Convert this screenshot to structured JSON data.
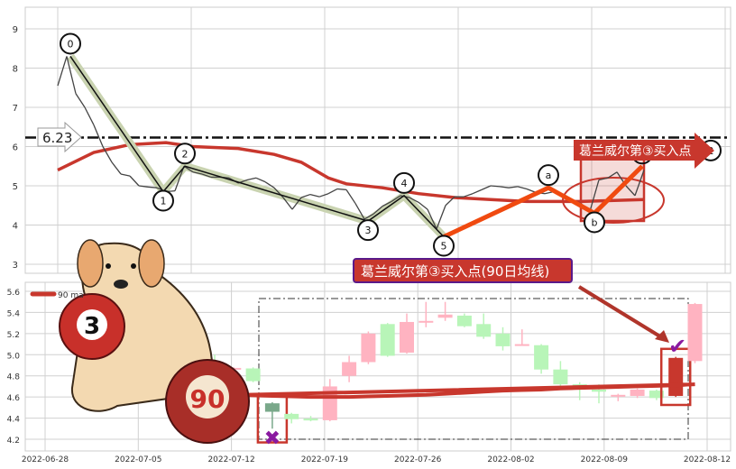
{
  "chart_data": [
    {
      "type": "line",
      "panel": "top",
      "yticks": [
        3,
        4,
        5,
        6,
        7,
        8,
        9
      ],
      "ylim": [
        2.7,
        9.5
      ],
      "grid": true,
      "price": [
        7.55,
        8.3,
        7.35,
        7.0,
        6.55,
        6.0,
        5.6,
        5.3,
        5.25,
        5.0,
        4.97,
        4.95,
        4.85,
        4.87,
        5.5,
        5.35,
        5.3,
        5.22,
        5.22,
        5.2,
        5.07,
        5.15,
        5.2,
        5.1,
        4.95,
        4.7,
        4.4,
        4.7,
        4.78,
        4.72,
        4.8,
        4.92,
        4.9,
        4.55,
        4.15,
        4.28,
        4.48,
        4.6,
        4.75,
        4.7,
        4.58,
        4.4,
        3.9,
        4.5,
        4.72,
        4.72,
        4.8,
        4.9,
        5.0,
        4.98,
        4.95,
        4.98,
        4.92,
        4.83,
        4.8,
        4.85,
        4.75,
        4.65,
        4.55,
        4.35,
        5.15,
        5.2,
        5.35,
        5.0,
        4.75,
        5.4
      ],
      "ma": [
        [
          0,
          5.4
        ],
        [
          4,
          5.85
        ],
        [
          8,
          6.05
        ],
        [
          12,
          6.1
        ],
        [
          15,
          6.0
        ],
        [
          20,
          5.95
        ],
        [
          24,
          5.8
        ],
        [
          27,
          5.6
        ],
        [
          30,
          5.2
        ],
        [
          32,
          5.05
        ],
        [
          36,
          4.95
        ],
        [
          40,
          4.8
        ],
        [
          44,
          4.7
        ],
        [
          48,
          4.65
        ],
        [
          52,
          4.6
        ],
        [
          58,
          4.6
        ],
        [
          65,
          4.65
        ]
      ],
      "level_line": {
        "value": 6.23,
        "label": "6.23"
      },
      "wave_points": [
        {
          "label": "0",
          "i": 1.4,
          "v": 8.3,
          "pos": "above"
        },
        {
          "label": "1",
          "i": 11.7,
          "v": 4.85,
          "pos": "below"
        },
        {
          "label": "2",
          "i": 14.1,
          "v": 5.5,
          "pos": "above"
        },
        {
          "label": "3",
          "i": 34.4,
          "v": 4.1,
          "pos": "below"
        },
        {
          "label": "4",
          "i": 38.4,
          "v": 4.75,
          "pos": "above"
        },
        {
          "label": "5",
          "i": 42.8,
          "v": 3.7,
          "pos": "below"
        },
        {
          "label": "a",
          "i": 54.4,
          "v": 4.95,
          "pos": "above"
        },
        {
          "label": "b",
          "i": 59.5,
          "v": 4.3,
          "pos": "below"
        },
        {
          "label": "",
          "i": 64.8,
          "v": 5.5,
          "pos": "above"
        },
        {
          "label": "2",
          "i": 72.4,
          "v": 5.9,
          "pos": "on"
        }
      ],
      "annotation": "葛兰威尔第③买入点"
    },
    {
      "type": "candlestick",
      "panel": "bottom",
      "yticks": [
        4.2,
        4.4,
        4.6,
        4.8,
        5.0,
        5.2,
        5.4,
        5.6
      ],
      "ylim": [
        4.15,
        5.68
      ],
      "xticks": [
        "2022-06-28",
        "2022-07-05",
        "2022-07-12",
        "2022-07-19",
        "2022-07-26",
        "2022-08-02",
        "2022-08-09",
        "2022-08-12"
      ],
      "legend": {
        "label": "90 ma",
        "placement": "top-left"
      },
      "candles": [
        {
          "o": 4.85,
          "c": 4.8,
          "h": 5.0,
          "l": 4.75
        },
        {
          "o": 4.87,
          "c": 4.875,
          "h": 4.88,
          "l": 4.85
        },
        {
          "o": 4.87,
          "c": 4.75,
          "h": 4.88,
          "l": 4.74
        },
        {
          "o": 4.54,
          "c": 4.46,
          "h": 4.55,
          "l": 4.3,
          "highlight": "sell"
        },
        {
          "o": 4.44,
          "c": 4.39,
          "h": 4.45,
          "l": 4.35
        },
        {
          "o": 4.395,
          "c": 4.39,
          "h": 4.42,
          "l": 4.37
        },
        {
          "o": 4.38,
          "c": 4.7,
          "h": 4.77,
          "l": 4.37
        },
        {
          "o": 4.8,
          "c": 4.93,
          "h": 4.99,
          "l": 4.74
        },
        {
          "o": 4.93,
          "c": 5.2,
          "h": 5.22,
          "l": 4.91
        },
        {
          "o": 5.29,
          "c": 4.99,
          "h": 5.3,
          "l": 4.98
        },
        {
          "o": 5.02,
          "c": 5.31,
          "h": 5.39,
          "l": 5.01
        },
        {
          "o": 5.315,
          "c": 5.32,
          "h": 5.5,
          "l": 5.26
        },
        {
          "o": 5.35,
          "c": 5.38,
          "h": 5.5,
          "l": 5.32
        },
        {
          "o": 5.37,
          "c": 5.27,
          "h": 5.39,
          "l": 5.26
        },
        {
          "o": 5.29,
          "c": 5.17,
          "h": 5.39,
          "l": 5.15
        },
        {
          "o": 5.2,
          "c": 5.08,
          "h": 5.26,
          "l": 5.04
        },
        {
          "o": 5.095,
          "c": 5.1,
          "h": 5.24,
          "l": 5.09
        },
        {
          "o": 5.09,
          "c": 4.86,
          "h": 5.1,
          "l": 4.82
        },
        {
          "o": 4.86,
          "c": 4.72,
          "h": 4.94,
          "l": 4.7
        },
        {
          "o": 4.72,
          "c": 4.69,
          "h": 4.74,
          "l": 4.57
        },
        {
          "o": 4.67,
          "c": 4.65,
          "h": 4.72,
          "l": 4.54
        },
        {
          "o": 4.61,
          "c": 4.62,
          "h": 4.63,
          "l": 4.56
        },
        {
          "o": 4.61,
          "c": 4.67,
          "h": 4.68,
          "l": 4.59
        },
        {
          "o": 4.66,
          "c": 4.59,
          "h": 4.67,
          "l": 4.57
        },
        {
          "o": 4.61,
          "c": 4.97,
          "h": 4.98,
          "l": 4.6,
          "highlight": "buy"
        },
        {
          "o": 4.94,
          "c": 5.48,
          "h": 5.49,
          "l": 4.92
        }
      ],
      "ma90": [
        4.62,
        4.62,
        4.615,
        4.61,
        4.605,
        4.6,
        4.6,
        4.6,
        4.605,
        4.61,
        4.615,
        4.62,
        4.63,
        4.64,
        4.65,
        4.66,
        4.665,
        4.67,
        4.68,
        4.685,
        4.69,
        4.695,
        4.7,
        4.705,
        4.71,
        4.72
      ],
      "annotation": "葛兰威尔第③买入点(90日均线)"
    }
  ],
  "stickers": {
    "ball_3": "3",
    "ball_90": "90"
  },
  "colors": {
    "up": "#ffb3c1",
    "down": "#b8f5b8",
    "ma": "#c8372d",
    "wave_highlight": "#c9d3b0",
    "orange": "#f04a10",
    "annotation_bg": "#c8372d",
    "annotation_border": "#5a1a8a",
    "mark_purple": "#8a1aa0"
  }
}
